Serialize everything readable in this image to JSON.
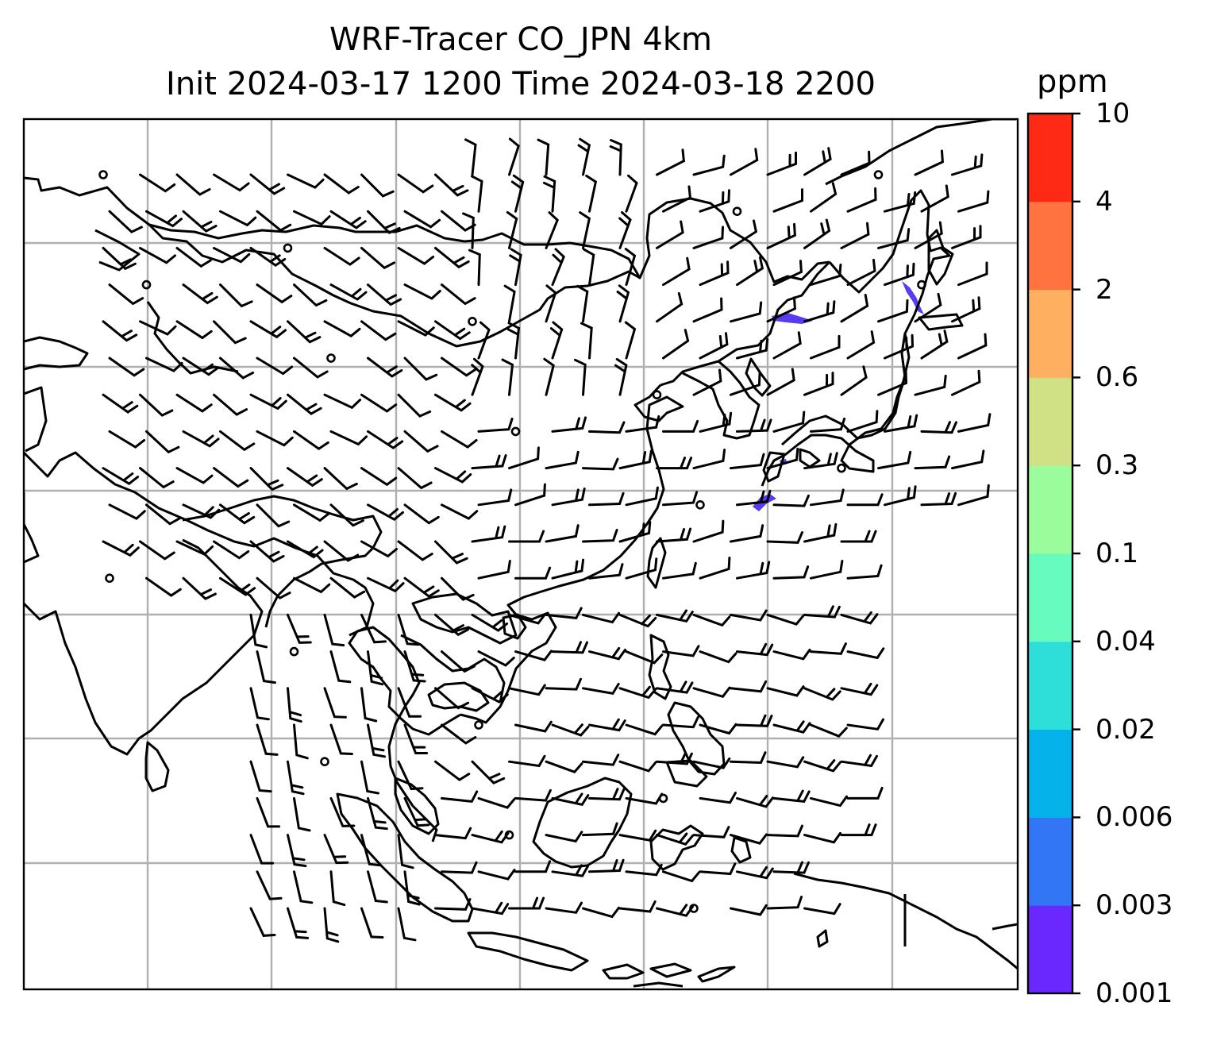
{
  "title": {
    "line1": "WRF-Tracer CO_JPN 4km",
    "line2": "Init 2024-03-17 1200 Time 2024-03-18 2200"
  },
  "colorbar": {
    "unit": "ppm",
    "ticks": [
      "0.001",
      "0.003",
      "0.006",
      "0.02",
      "0.04",
      "0.1",
      "0.3",
      "0.6",
      "2",
      "4",
      "10"
    ],
    "colors": [
      "#6a28ff",
      "#3276f5",
      "#05b2ea",
      "#2ddfd8",
      "#68fbc0",
      "#9bfc9c",
      "#d0e185",
      "#feb060",
      "#fe7340",
      "#ff2a16"
    ]
  },
  "map": {
    "gridline_color": "#b0b0b0",
    "coast_color": "#000000",
    "barb_color": "#000000"
  }
}
